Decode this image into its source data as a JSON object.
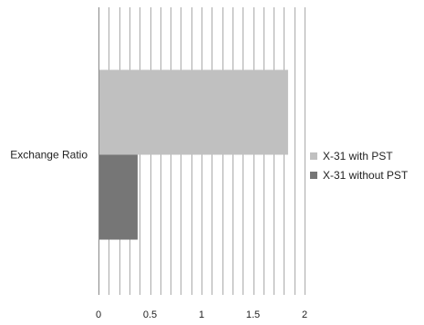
{
  "chart_data": {
    "type": "bar",
    "orientation": "horizontal",
    "title": "",
    "xlabel": "",
    "ylabel": "",
    "categories": [
      "Exchange Ratio"
    ],
    "series": [
      {
        "name": "X-31 with PST",
        "values": [
          1.84
        ],
        "color": "#c0c0c0"
      },
      {
        "name": "X-31 without PST",
        "values": [
          0.38
        ],
        "color": "#767676"
      }
    ],
    "xlim": [
      0,
      2
    ],
    "xticks": [
      "0",
      "0.5",
      "1",
      "1.5",
      "2"
    ],
    "minor_gridlines": true,
    "minor_step": 0.1,
    "legend_position": "right"
  }
}
